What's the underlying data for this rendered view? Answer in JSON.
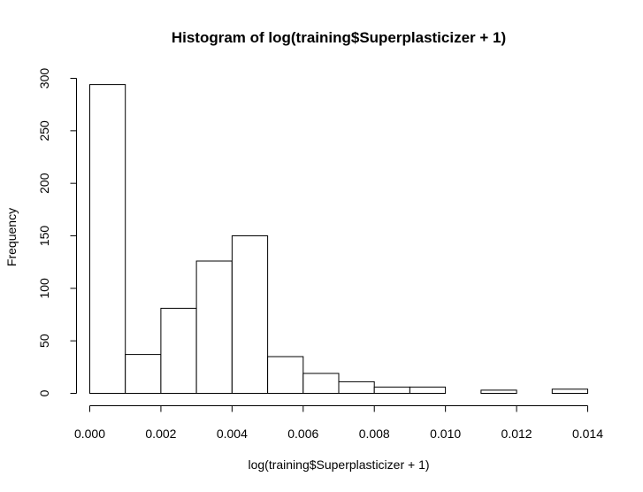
{
  "chart_data": {
    "type": "bar",
    "title": "Histogram of log(training$Superplasticizer + 1)",
    "xlabel": "log(training$Superplasticizer + 1)",
    "ylabel": "Frequency",
    "bin_edges": [
      0.0,
      0.001,
      0.002,
      0.003,
      0.004,
      0.005,
      0.006,
      0.007,
      0.008,
      0.009,
      0.01,
      0.011,
      0.012,
      0.013,
      0.014
    ],
    "values": [
      294,
      37,
      81,
      126,
      150,
      35,
      19,
      11,
      6,
      6,
      0,
      3,
      0,
      4
    ],
    "xlim": [
      0,
      0.014
    ],
    "ylim": [
      0,
      300
    ],
    "x_ticks": [
      "0.000",
      "0.002",
      "0.004",
      "0.006",
      "0.008",
      "0.010",
      "0.012",
      "0.014"
    ],
    "x_tick_values": [
      0,
      0.002,
      0.004,
      0.006,
      0.008,
      0.01,
      0.012,
      0.014
    ],
    "y_ticks": [
      "0",
      "50",
      "100",
      "150",
      "200",
      "250",
      "300"
    ],
    "y_tick_values": [
      0,
      50,
      100,
      150,
      200,
      250,
      300
    ],
    "grid": false,
    "legend": "none"
  }
}
